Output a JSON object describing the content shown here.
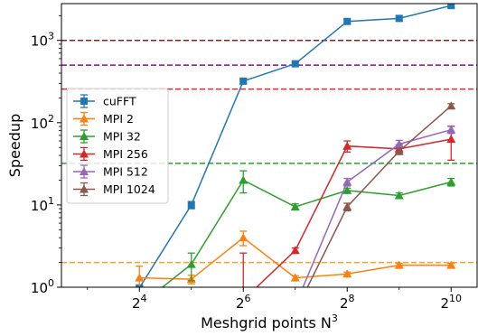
{
  "chart_data": {
    "type": "line",
    "xlabel": "Meshgrid points N",
    "xlabel_sup": "3",
    "ylabel": "Speedup",
    "xscale": "log2",
    "yscale": "log10",
    "xlim_exp": [
      2.5,
      10.5
    ],
    "ylim": [
      1,
      2800
    ],
    "x_ticks": [
      {
        "base": "2",
        "exp": "4",
        "e": 4
      },
      {
        "base": "2",
        "exp": "6",
        "e": 6
      },
      {
        "base": "2",
        "exp": "8",
        "e": 8
      },
      {
        "base": "2",
        "exp": "10",
        "e": 10
      }
    ],
    "y_ticks": [
      {
        "base": "10",
        "exp": "0",
        "v": 1
      },
      {
        "base": "10",
        "exp": "1",
        "v": 10
      },
      {
        "base": "10",
        "exp": "2",
        "v": 100
      },
      {
        "base": "10",
        "exp": "3",
        "v": 1000
      }
    ],
    "legend_position": "center-left",
    "series": [
      {
        "name": "cuFFT",
        "color": "#1f77b4",
        "marker": "square",
        "x": [
          8,
          16,
          32,
          64,
          128,
          256,
          512,
          1024
        ],
        "y": [
          0.8,
          0.98,
          10,
          320,
          520,
          1700,
          1850,
          2650
        ],
        "err": [
          null,
          0.05,
          1,
          25,
          35,
          100,
          120,
          150
        ]
      },
      {
        "name": "MPI 2",
        "color": "#ff7f0e",
        "marker": "triangle",
        "x": [
          16,
          32,
          64,
          128,
          256,
          512,
          1024
        ],
        "y": [
          1.3,
          1.25,
          4.0,
          1.3,
          1.45,
          1.85,
          1.85
        ],
        "err": [
          0.5,
          0.15,
          0.8,
          0.08,
          0.08,
          0.1,
          0.1
        ]
      },
      {
        "name": "MPI 32",
        "color": "#2ca02c",
        "marker": "triangle",
        "x": [
          16,
          32,
          64,
          128,
          256,
          512,
          1024
        ],
        "y": [
          0.6,
          1.9,
          20,
          9.5,
          15,
          13,
          19
        ],
        "err": [
          null,
          0.7,
          6,
          0.8,
          1,
          1,
          2
        ]
      },
      {
        "name": "MPI 256",
        "color": "#d62728",
        "marker": "triangle",
        "x": [
          64,
          128,
          256,
          512,
          1024
        ],
        "y": [
          0.7,
          2.8,
          52,
          48,
          63
        ],
        "err": [
          1.9,
          0.2,
          8,
          6,
          28
        ]
      },
      {
        "name": "MPI 512",
        "color": "#9467bd",
        "marker": "triangle",
        "x": [
          128,
          256,
          512,
          1024
        ],
        "y": [
          0.6,
          19,
          55,
          82
        ],
        "err": [
          null,
          2,
          6,
          8
        ]
      },
      {
        "name": "MPI 1024",
        "color": "#8c564b",
        "marker": "triangle",
        "x": [
          128,
          256,
          512,
          1024
        ],
        "y": [
          0.5,
          9.5,
          45,
          160
        ],
        "err": [
          null,
          1,
          4,
          10
        ]
      }
    ],
    "hlines": [
      {
        "y": 1000,
        "color": "#8c1f1f"
      },
      {
        "y": 500,
        "color": "#9400a0"
      },
      {
        "y": 256,
        "color": "#e8252a"
      },
      {
        "y": 32,
        "color": "#2ca02c"
      },
      {
        "y": 2,
        "color": "#ffa024"
      }
    ]
  }
}
